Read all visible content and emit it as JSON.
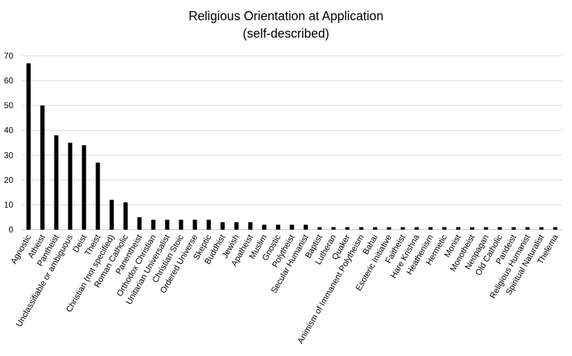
{
  "chart_data": {
    "type": "bar",
    "title": [
      "Religious Orientation at Application",
      "(self-described)"
    ],
    "xlabel": "",
    "ylabel": "",
    "ylim": [
      0,
      70
    ],
    "yticks": [
      0,
      10,
      20,
      30,
      40,
      50,
      60,
      70
    ],
    "grid": true,
    "legend": "none",
    "bar_color": "#000000",
    "categories": [
      "Agnostic",
      "Atheist",
      "Pantheist",
      "Unclassifiable or ambiguous",
      "Deist",
      "Theist",
      "Christian (not specified)",
      "Roman Catholic",
      "Panentheist",
      "Orthodox Christian",
      "Unitarian Universalist",
      "Christian Stoic",
      "Ordered Universe",
      "Skeptic",
      "Buddhist",
      "Jewish",
      "Apatheist",
      "Muslim",
      "Gnostic",
      "Polytheist",
      "Secular Humanist",
      "Baptist",
      "Lutheran",
      "Quaker",
      "Animism of Immanent Polytheism",
      "Bahai",
      "Esoteric Initiative",
      "Faitheist",
      "Hare Krishna",
      "Heathenism",
      "Hermetic",
      "Monist",
      "Monotheist",
      "Neopagan",
      "Old Catholic",
      "Pandeist",
      "Religious Humanist",
      "Spiritual Naturalist",
      "Thelema"
    ],
    "values": [
      67,
      50,
      38,
      35,
      34,
      27,
      12,
      11,
      5,
      4,
      4,
      4,
      4,
      4,
      3,
      3,
      3,
      2,
      2,
      2,
      2,
      1,
      1,
      1,
      1,
      1,
      1,
      1,
      1,
      1,
      1,
      1,
      1,
      1,
      1,
      1,
      1,
      1,
      1
    ]
  }
}
